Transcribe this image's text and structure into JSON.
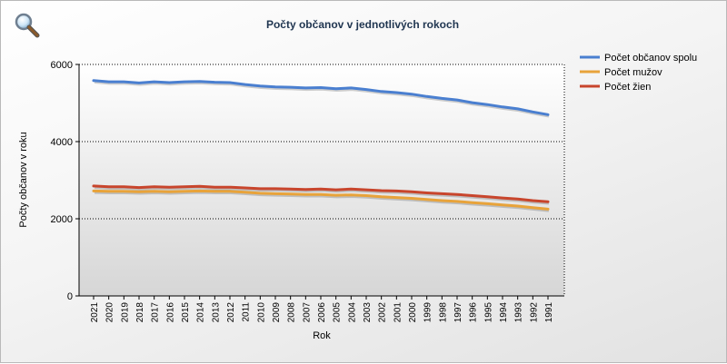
{
  "chart_data": {
    "type": "line",
    "title": "Počty občanov v jednotlivých rokoch",
    "xlabel": "Rok",
    "ylabel": "Počty občanov v roku",
    "ylim": [
      0,
      6000
    ],
    "yticks": [
      0,
      2000,
      4000,
      6000
    ],
    "grid": "horizontal-dotted",
    "legend_position": "right",
    "categories": [
      "2021",
      "2020",
      "2019",
      "2018",
      "2017",
      "2016",
      "2015",
      "2014",
      "2013",
      "2012",
      "2011",
      "2010",
      "2009",
      "2008",
      "2007",
      "2006",
      "2005",
      "2004",
      "2003",
      "2002",
      "2001",
      "2000",
      "1999",
      "1998",
      "1997",
      "1996",
      "1995",
      "1994",
      "1993",
      "1992",
      "1991"
    ],
    "series": [
      {
        "name": "Počet občanov spolu",
        "color": "#4a7fd0",
        "values": [
          5580,
          5550,
          5550,
          5520,
          5550,
          5530,
          5550,
          5560,
          5540,
          5530,
          5480,
          5440,
          5420,
          5410,
          5390,
          5400,
          5370,
          5390,
          5350,
          5300,
          5270,
          5230,
          5170,
          5120,
          5080,
          5010,
          4960,
          4900,
          4850,
          4770,
          4700
        ]
      },
      {
        "name": "Počet mužov",
        "color": "#e8a33a",
        "values": [
          2720,
          2710,
          2710,
          2700,
          2710,
          2700,
          2710,
          2720,
          2710,
          2710,
          2690,
          2660,
          2650,
          2640,
          2630,
          2630,
          2610,
          2620,
          2600,
          2570,
          2550,
          2530,
          2500,
          2470,
          2450,
          2420,
          2390,
          2360,
          2330,
          2290,
          2250
        ]
      },
      {
        "name": "Počet žien",
        "color": "#c8452c",
        "values": [
          2850,
          2830,
          2830,
          2810,
          2830,
          2820,
          2830,
          2840,
          2820,
          2820,
          2800,
          2780,
          2780,
          2770,
          2760,
          2770,
          2750,
          2770,
          2750,
          2730,
          2720,
          2700,
          2670,
          2650,
          2630,
          2600,
          2570,
          2540,
          2510,
          2470,
          2440
        ]
      }
    ]
  },
  "toolbar": {
    "zoom_icon": "magnifier-icon"
  }
}
